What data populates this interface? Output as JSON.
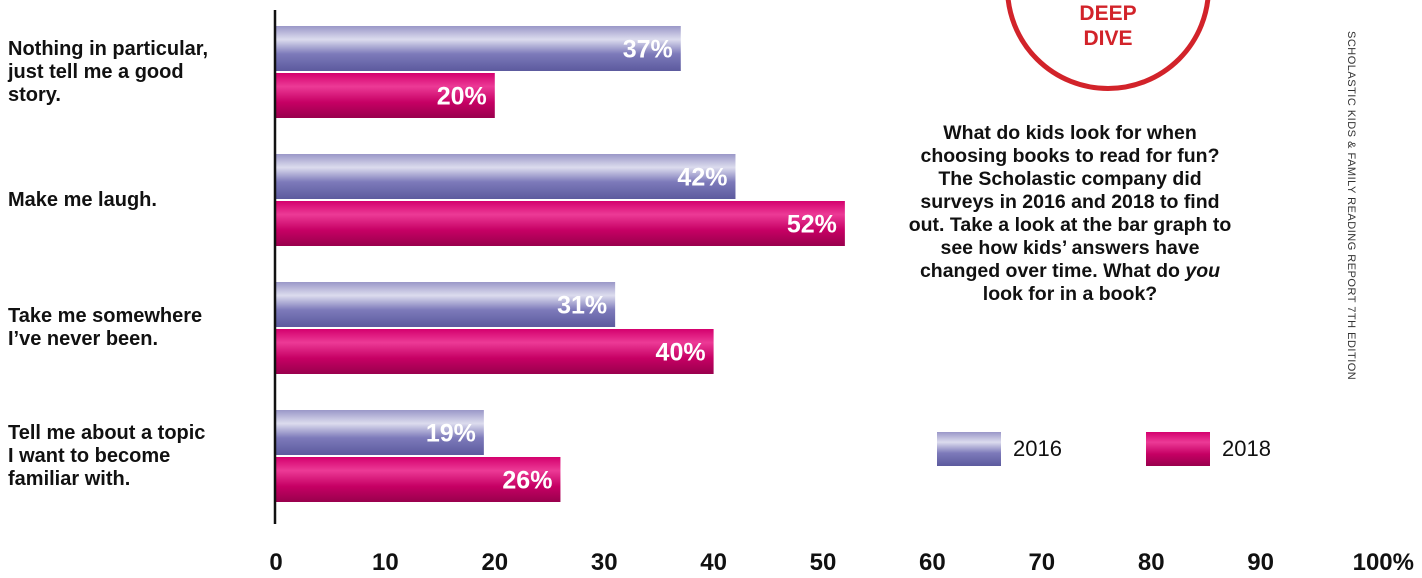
{
  "badge": {
    "text": "DEEP\nDIVE"
  },
  "description": {
    "before_italic": "What do kids look for when choosing books to read for fun? The Scholastic company did surveys in 2016 and 2018 to find out. Take a look at the bar graph to see how kids’ answers have changed over time. What do ",
    "italic": "you",
    "after_italic": " look for in a book?"
  },
  "legend": [
    {
      "label": "2016",
      "color": "#7d7aba"
    },
    {
      "label": "2018",
      "color": "#c60064"
    }
  ],
  "source": "SCHOLASTIC KIDS & FAMILY READING REPORT 7TH EDITION",
  "colors": {
    "series_2016": "#7d7aba",
    "series_2018": "#c60064",
    "badge_red": "#d2232a",
    "axis": "#111111"
  },
  "chart_data": {
    "type": "bar",
    "orientation": "horizontal",
    "categories": [
      "Nothing in particular,\njust tell me a good\nstory.",
      "Make me laugh.",
      "Take me somewhere\nI’ve never been.",
      "Tell me about a topic\nI want to become\nfamiliar with."
    ],
    "series": [
      {
        "name": "2016",
        "values": [
          37,
          42,
          31,
          19
        ],
        "labels": [
          "37%",
          "42%",
          "31%",
          "19%"
        ]
      },
      {
        "name": "2018",
        "values": [
          20,
          52,
          40,
          26
        ],
        "labels": [
          "20%",
          "52%",
          "40%",
          "26%"
        ]
      }
    ],
    "x_ticks": [
      "0",
      "10",
      "20",
      "30",
      "40",
      "50",
      "60",
      "70",
      "80",
      "90",
      "100%"
    ],
    "xlim": [
      0,
      100
    ],
    "xlabel": "",
    "ylabel": "",
    "grid": false,
    "legend_position": "right"
  }
}
